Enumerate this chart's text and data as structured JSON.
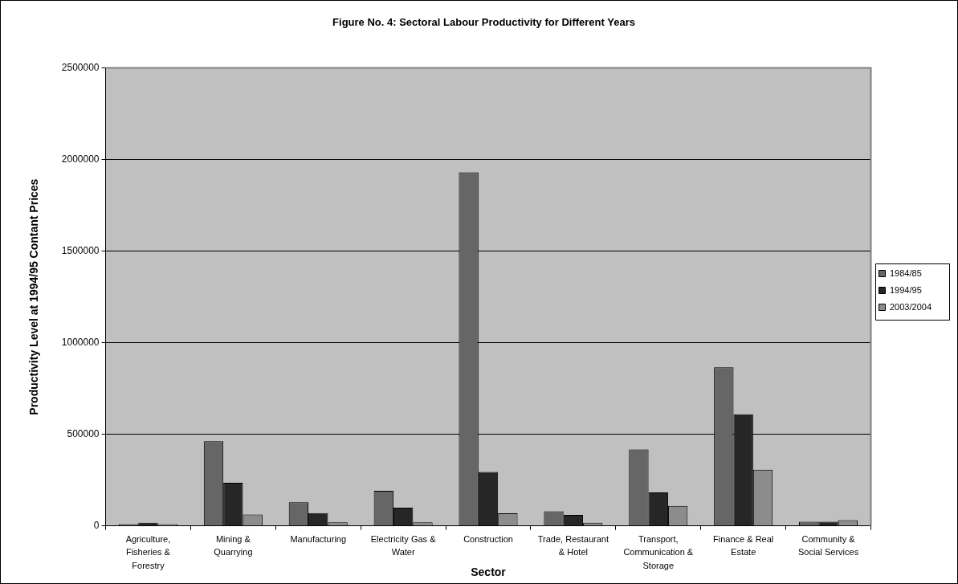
{
  "chart_data": {
    "type": "bar",
    "title": "Figure No. 4: Sectoral Labour Productivity for Different Years",
    "xlabel": "Sector",
    "ylabel": "Productivity Level at 1994/95 Contant Prices",
    "categories": [
      "Agriculture, Fisheries & Forestry",
      "Mining & Quarrying",
      "Manufacturing",
      "Electricity Gas & Water",
      "Construction",
      "Trade, Restaurant & Hotel",
      "Transport, Communication & Storage",
      "Finance & Real Estate",
      "Community & Social Services"
    ],
    "series": [
      {
        "name": "1984/85",
        "color": "#666666",
        "values": [
          10000,
          462000,
          129000,
          192000,
          1930000,
          80000,
          417000,
          866000,
          23000
        ]
      },
      {
        "name": "1994/95",
        "color": "#262626",
        "values": [
          17000,
          235000,
          70000,
          100000,
          295000,
          60000,
          183000,
          609000,
          23000
        ]
      },
      {
        "name": "2003/2004",
        "color": "#8c8c8c",
        "values": [
          10000,
          62000,
          19000,
          19000,
          69000,
          17000,
          109000,
          307000,
          32000
        ]
      }
    ],
    "ylim": [
      0,
      2500000
    ],
    "yticks": [
      0,
      500000,
      1000000,
      1500000,
      2000000,
      2500000
    ],
    "grid": "y",
    "legend": "right"
  }
}
